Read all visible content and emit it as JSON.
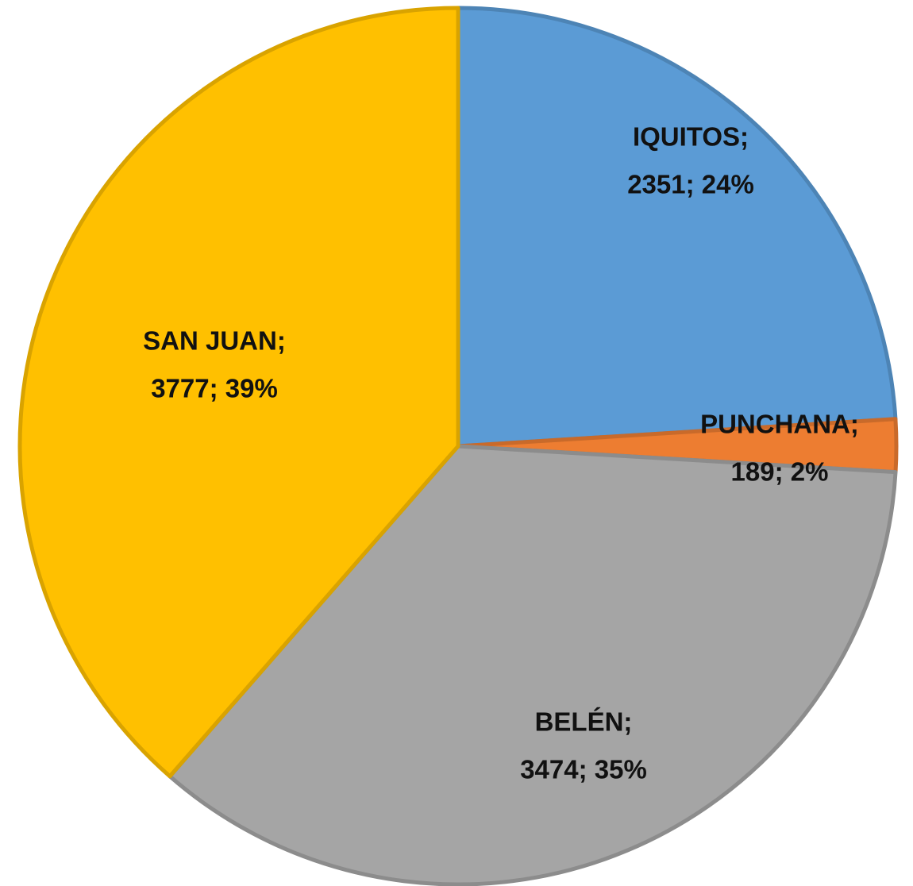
{
  "chart_data": {
    "type": "pie",
    "values": [
      2351,
      189,
      3474,
      3777
    ],
    "value_labels": [
      [
        "IQUITOS;",
        "2351; 24%"
      ],
      [
        "PUNCHANA;",
        "189; 2%"
      ],
      [
        "BELÉN;",
        "3474; 35%"
      ],
      [
        "SAN JUAN;",
        "3777; 39%"
      ]
    ],
    "colors": [
      "#5b9bd5",
      "#ed7d31",
      "#a5a5a5",
      "#ffc000"
    ]
  }
}
